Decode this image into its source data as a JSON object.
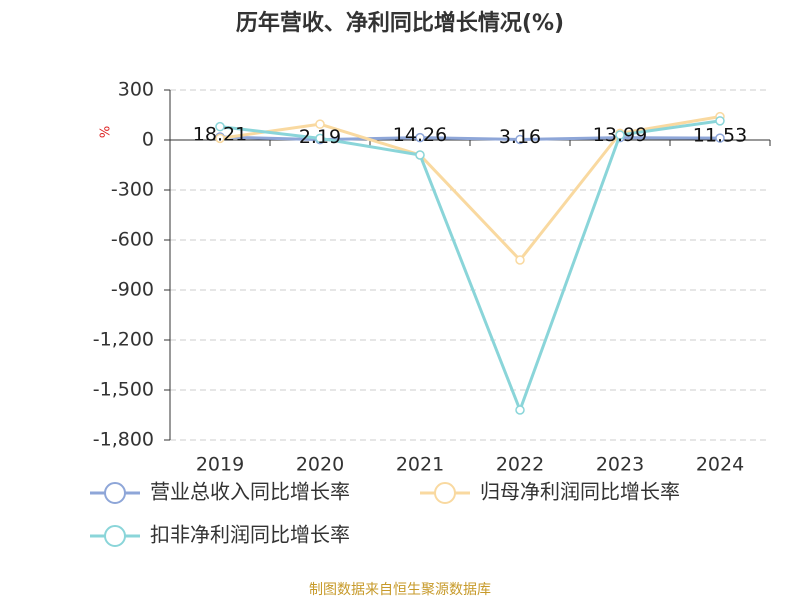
{
  "chart_data": {
    "type": "line",
    "title": "历年营收、净利同比增长情况(%)",
    "y_label": "%",
    "categories": [
      "2019",
      "2020",
      "2021",
      "2022",
      "2023",
      "2024"
    ],
    "series": [
      {
        "name": "营业总收入同比增长率",
        "color": "#8ea6d8",
        "values": [
          18.21,
          2.19,
          14.26,
          3.16,
          13.99,
          11.53
        ]
      },
      {
        "name": "归母净利润同比增长率",
        "color": "#f9d9a0",
        "values": [
          10,
          95,
          -90,
          -720,
          40,
          140
        ]
      },
      {
        "name": "扣非净利润同比增长率",
        "color": "#8ad5d9",
        "values": [
          80,
          10,
          -90,
          -1620,
          30,
          115
        ]
      }
    ],
    "ylim": [
      -1800,
      300
    ],
    "yticks": [
      300,
      0,
      -300,
      -600,
      -900,
      {
        "value": -1200,
        "label": "-1,200"
      },
      {
        "value": -1500,
        "label": "-1,500"
      },
      {
        "value": -1800,
        "label": "-1,800"
      }
    ],
    "grid": true,
    "footer": "制图数据来自恒生聚源数据库"
  }
}
